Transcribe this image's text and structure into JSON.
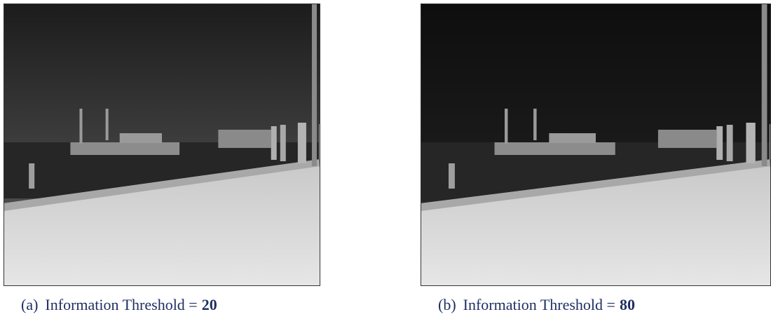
{
  "figure": {
    "panels": [
      {
        "label": "(a)",
        "caption": "Information Threshold =",
        "threshold": 20
      },
      {
        "label": "(b)",
        "caption": "Information Threshold =",
        "threshold": 80
      }
    ]
  }
}
